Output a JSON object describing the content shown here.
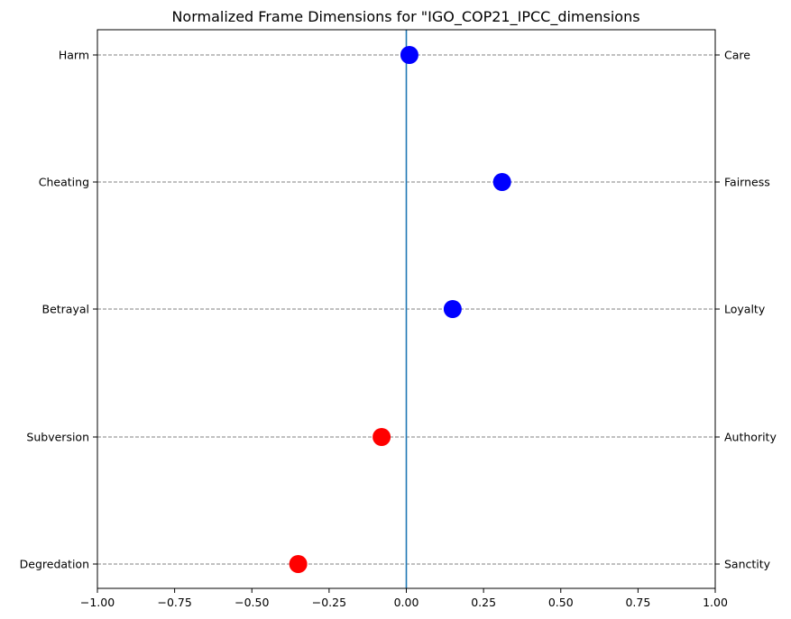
{
  "chart_data": {
    "type": "scatter",
    "title": "Normalized Frame Dimensions for \"IGO_COP21_IPCC_dimensions",
    "xlabel": "",
    "ylabel": "",
    "xlim": [
      -1.0,
      1.0
    ],
    "x_ticks": [
      -1.0,
      -0.75,
      -0.5,
      -0.25,
      0.0,
      0.25,
      0.5,
      0.75,
      1.0
    ],
    "x_tick_labels": [
      "−1.00",
      "−0.75",
      "−0.50",
      "−0.25",
      "0.00",
      "0.25",
      "0.50",
      "0.75",
      "1.00"
    ],
    "left_labels": [
      "Harm",
      "Cheating",
      "Betrayal",
      "Subversion",
      "Degredation"
    ],
    "right_labels": [
      "Care",
      "Fairness",
      "Loyalty",
      "Authority",
      "Sanctity"
    ],
    "points": [
      {
        "left": "Harm",
        "right": "Care",
        "x": 0.01,
        "color": "#0000ff"
      },
      {
        "left": "Cheating",
        "right": "Fairness",
        "x": 0.31,
        "color": "#0000ff"
      },
      {
        "left": "Betrayal",
        "right": "Loyalty",
        "x": 0.15,
        "color": "#0000ff"
      },
      {
        "left": "Subversion",
        "right": "Authority",
        "x": -0.08,
        "color": "#ff0000"
      },
      {
        "left": "Degredation",
        "right": "Sanctity",
        "x": -0.35,
        "color": "#ff0000"
      }
    ],
    "grid": "horizontal-dashed",
    "zero_line_color": "#1f77b4"
  }
}
